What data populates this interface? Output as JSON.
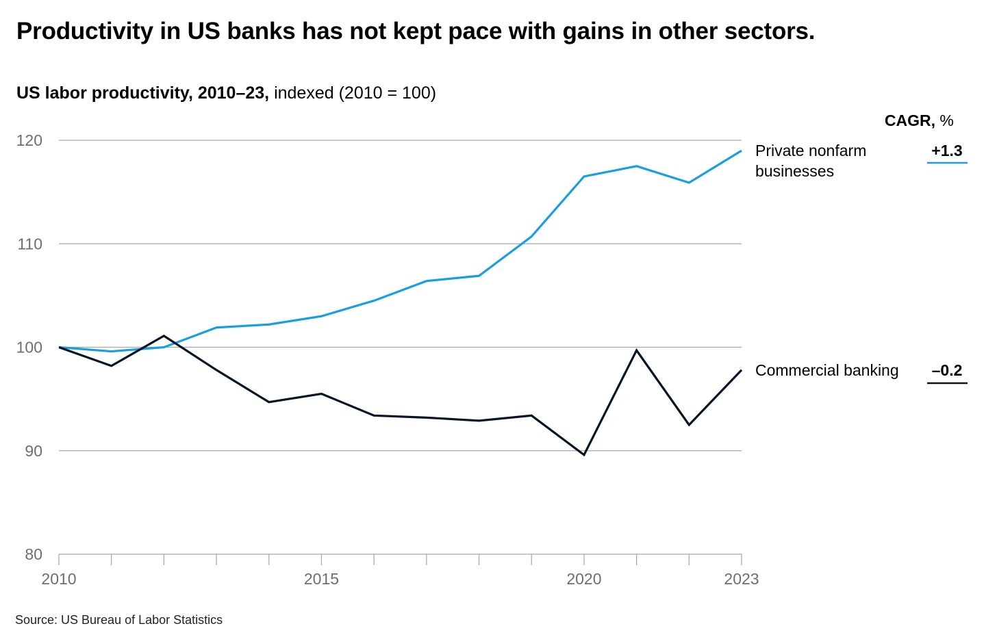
{
  "headline": "Productivity in US banks has not kept pace with gains in other sectors.",
  "subtitle": {
    "bold": "US labor productivity, 2010–23,",
    "light": " indexed (2010 = 100)"
  },
  "source": "Source: US Bureau of Labor Statistics",
  "cagr_header": {
    "label": "CAGR,",
    "unit": " %"
  },
  "colors": {
    "private": "#1a9ee2",
    "banking": "#071426",
    "grid": "#a6a6a6",
    "tick_text": "#6e6e6e"
  },
  "chart_data": {
    "type": "line",
    "title": "US labor productivity, 2010–23, indexed (2010 = 100)",
    "xlabel": "",
    "ylabel": "",
    "xlim": [
      2010,
      2023
    ],
    "ylim": [
      80,
      120
    ],
    "yticks": [
      80,
      90,
      100,
      110,
      120
    ],
    "xticks_labeled": [
      2010,
      2015,
      2020,
      2023
    ],
    "xticks": [
      2010,
      2011,
      2012,
      2013,
      2014,
      2015,
      2016,
      2017,
      2018,
      2019,
      2020,
      2021,
      2022,
      2023
    ],
    "grid": true,
    "x": [
      2010,
      2011,
      2012,
      2013,
      2014,
      2015,
      2016,
      2017,
      2018,
      2019,
      2020,
      2021,
      2022,
      2023
    ],
    "series": [
      {
        "id": "private",
        "name_lines": [
          "Private nonfarm",
          "businesses"
        ],
        "cagr": "+1.3",
        "values": [
          100,
          99.6,
          100,
          101.9,
          102.2,
          103.0,
          104.5,
          106.4,
          106.9,
          110.7,
          116.5,
          117.5,
          115.9,
          119.0
        ]
      },
      {
        "id": "banking",
        "name_lines": [
          "Commercial banking"
        ],
        "cagr": "–0.2",
        "values": [
          100,
          98.2,
          101.1,
          97.8,
          94.7,
          95.5,
          93.4,
          93.2,
          92.9,
          93.4,
          89.6,
          99.7,
          92.5,
          97.8
        ]
      }
    ]
  }
}
